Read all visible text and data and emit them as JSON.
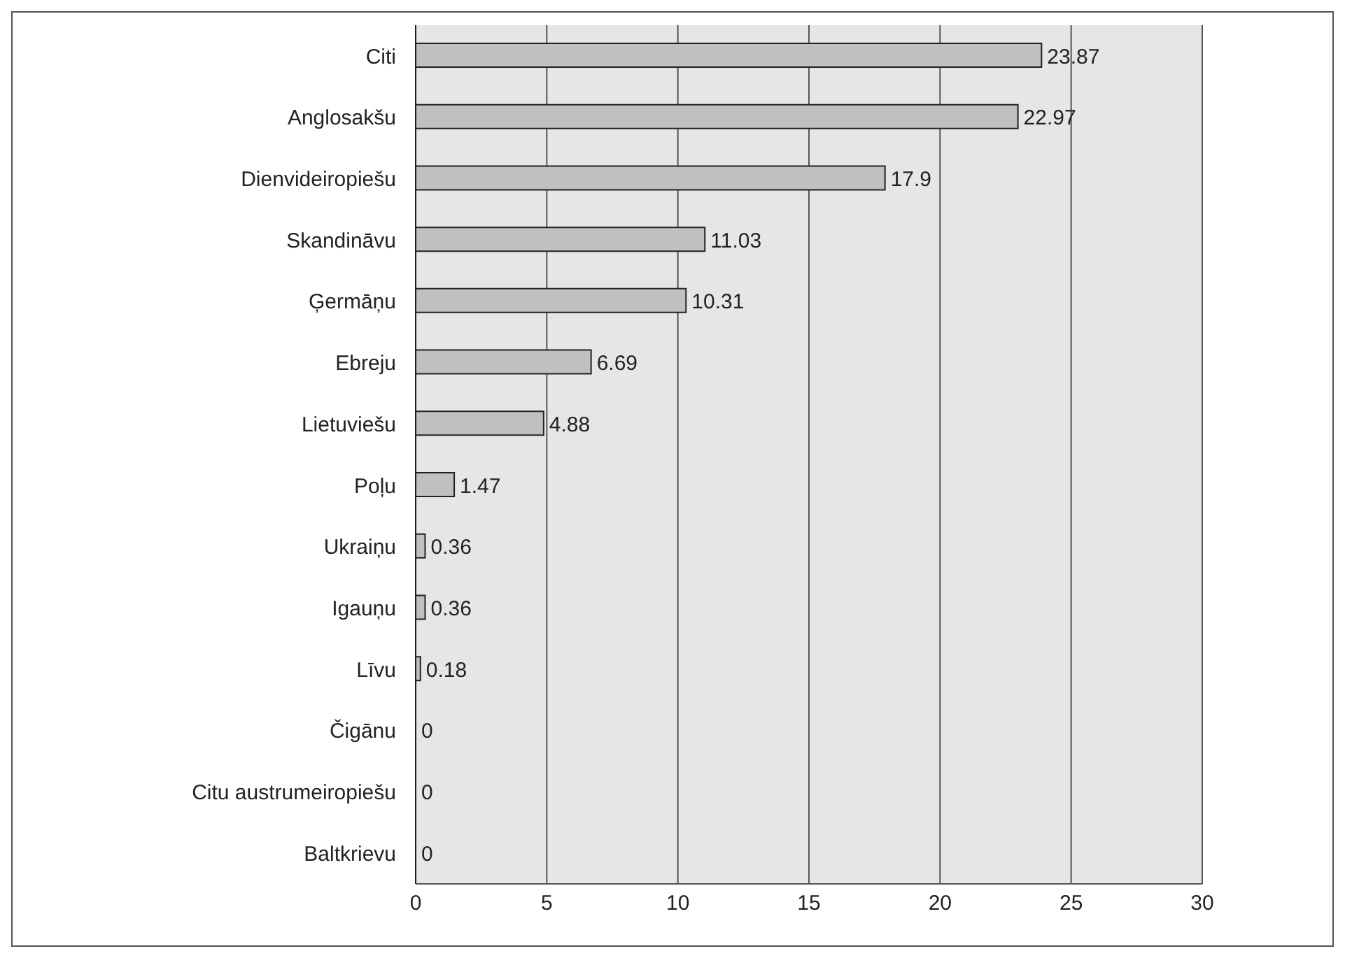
{
  "chart_data": {
    "type": "bar",
    "orientation": "horizontal",
    "categories": [
      "Citi",
      "Anglosakšu",
      "Dienvideiropiešu",
      "Skandināvu",
      "Ģermāņu",
      "Ebreju",
      "Lietuviešu",
      "Poļu",
      "Ukraiņu",
      "Igauņu",
      "Līvu",
      "Čigānu",
      "Citu austrumeiropiešu",
      "Baltkrievu"
    ],
    "values": [
      23.87,
      22.97,
      17.9,
      11.03,
      10.31,
      6.69,
      4.88,
      1.47,
      0.36,
      0.36,
      0.18,
      0,
      0,
      0
    ],
    "color": "#c0c0c0",
    "xlim": [
      0,
      30
    ],
    "xticks": [
      0,
      5,
      10,
      15,
      20,
      25,
      30
    ],
    "grid": "x",
    "data_labels": true
  }
}
